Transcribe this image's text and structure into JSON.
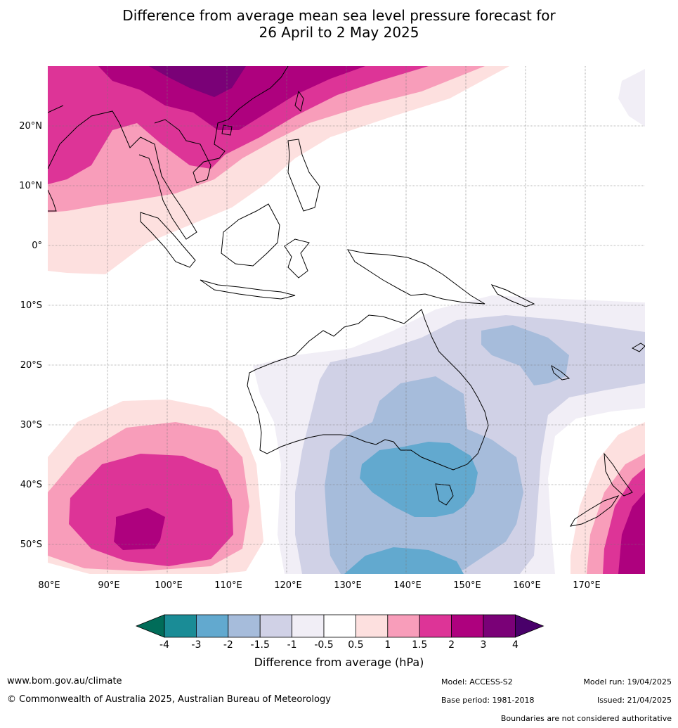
{
  "title_line1": "Difference from average mean sea level pressure forecast for",
  "title_line2": "26 April to 2 May 2025",
  "axes": {
    "lat_labels": [
      "20°N",
      "10°N",
      "0°",
      "10°S",
      "20°S",
      "30°S",
      "40°S",
      "50°S"
    ],
    "lon_labels": [
      "80°E",
      "90°E",
      "100°E",
      "110°E",
      "120°E",
      "130°E",
      "140°E",
      "150°E",
      "160°E",
      "170°E"
    ]
  },
  "colorbar": {
    "title": "Difference from average (hPa)",
    "ticks": [
      "-4",
      "-3",
      "-2",
      "-1.5",
      "-1",
      "-0.5",
      "0.5",
      "1",
      "1.5",
      "2",
      "3",
      "4"
    ],
    "colors": [
      "#1a8c96",
      "#62a9cf",
      "#a6bcdb",
      "#d0d1e6",
      "#f1eef6",
      "#ffffff",
      "#fde0df",
      "#f89dba",
      "#dd3497",
      "#ae017e",
      "#7a0177"
    ],
    "under_color": "#016c59",
    "over_color": "#49006a"
  },
  "footer": {
    "website": "www.bom.gov.au/climate",
    "copyright": "© Commonwealth of Australia 2025, Australian Bureau of Meteorology",
    "model": "Model: ACCESS-S2",
    "base_period": "Base period: 1981-2018",
    "model_run": "Model run: 19/04/2025",
    "issued": "Issued: 21/04/2025",
    "disclaimer": "Boundaries are not considered authoritative"
  }
}
